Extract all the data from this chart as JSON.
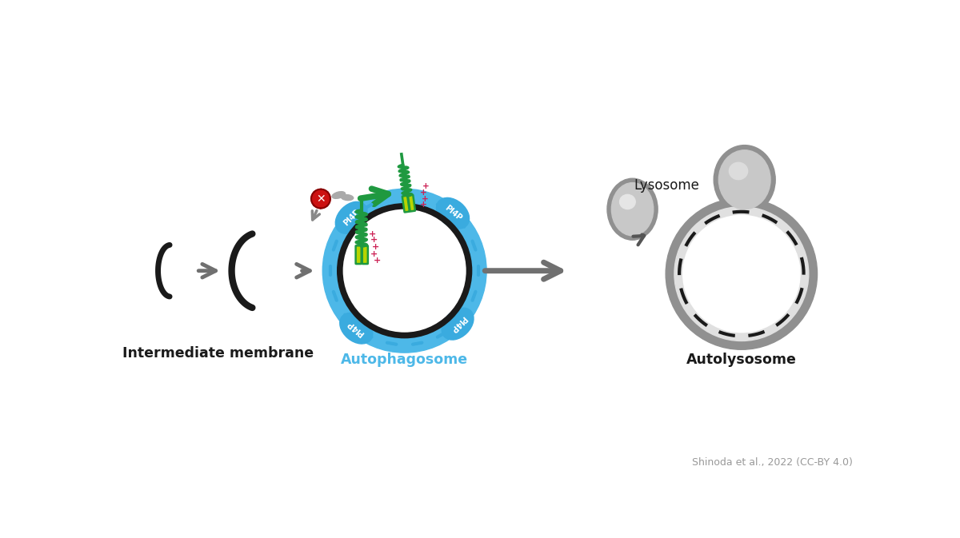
{
  "bg_color": "#ffffff",
  "label_intermediate": "Intermediate membrane",
  "label_autophagosome": "Autophagosome",
  "label_autolysosome": "Autolysosome",
  "label_lysosome": "Lysosome",
  "citation": "Shinoda et al., 2022 (CC-BY 4.0)",
  "black_color": "#1a1a1a",
  "gray_dark": "#555555",
  "gray_mid": "#888888",
  "gray_fill": "#c8c8c8",
  "gray_stroke": "#909090",
  "blue_ring": "#4db8e8",
  "blue_pi4p": "#3aabdf",
  "green_color": "#1f9940",
  "yellow_green": "#b8d400",
  "red_color": "#cc1111",
  "pink_plus": "#cc2255",
  "arrow_gray": "#707070"
}
